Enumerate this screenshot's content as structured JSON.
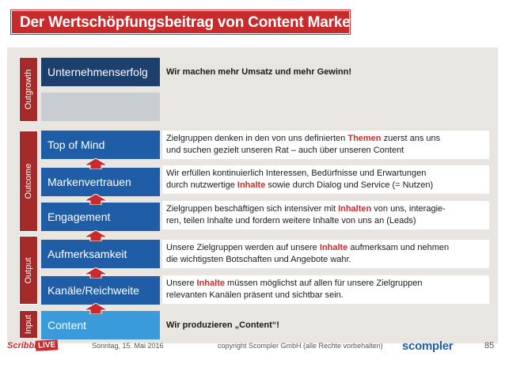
{
  "title": "Der Wertschöpfungsbeitrag von Content Marketing",
  "colors": {
    "title_bg": "#c72b2b",
    "stage_bg": "#a52a2a",
    "navy": "#1c3f6e",
    "blue": "#1f5ea6",
    "sky": "#3b9ad9",
    "gray": "#c9ccd1",
    "panel": "#e9e6e1",
    "highlight": "#c72b2b"
  },
  "stages": [
    {
      "label": "Outgrowth"
    },
    {
      "label": "Outcome"
    },
    {
      "label": "Output"
    },
    {
      "label": "Input"
    }
  ],
  "rows": [
    {
      "label": "Unternehmenserfolg",
      "text_before": "Wir machen mehr Umsatz und mehr Gewinn!",
      "highlight": "",
      "text_after": ""
    },
    {
      "label": "",
      "text_before": "",
      "highlight": "",
      "text_after": ""
    },
    {
      "label": "Top of Mind",
      "text_before": "Zielgruppen denken in den von uns definierten ",
      "highlight": "Themen",
      "text_after": " zuerst ans uns\nund suchen gezielt unseren Rat – auch über unseren Content"
    },
    {
      "label": "Markenvertrauen",
      "text_before": "Wir erfüllen kontinuierlich Interessen, Bedürfnisse und Erwartungen\ndurch nutzwertige ",
      "highlight": "Inhalte",
      "text_after": " sowie durch Dialog und Service  (= Nutzen)"
    },
    {
      "label": "Engagement",
      "text_before": "Zielgruppen beschäftigen sich intensiver mit ",
      "highlight": "Inhalten",
      "text_after": " von uns, interagie-\nren, teilen Inhalte und fordern weitere Inhalte von uns an (Leads)"
    },
    {
      "label": "Aufmerksamkeit",
      "text_before": "Unsere Zielgruppen werden auf unsere ",
      "highlight": "Inhalte",
      "text_after": " aufmerksam und nehmen\ndie wichtigsten Botschaften und Angebote wahr."
    },
    {
      "label": "Kanäle/Reichweite",
      "text_before": "Unsere ",
      "highlight": "Inhalte",
      "text_after": " müssen möglichst auf allen für unsere Zielgruppen\nrelevanten Kanälen präsent und sichtbar sein."
    },
    {
      "label": "Content",
      "text_before": "Wir produzieren „Content“!",
      "highlight": "",
      "text_after": ""
    }
  ],
  "footer": {
    "date": "Sonntag, 15. Mai 2016",
    "copyright": "copyright Scompler GmbH (alle Rechte vorbehalten)",
    "page": "85",
    "logo_scribble": "Scribble",
    "logo_live": "LIVE",
    "logo_scompler": "scompler"
  }
}
